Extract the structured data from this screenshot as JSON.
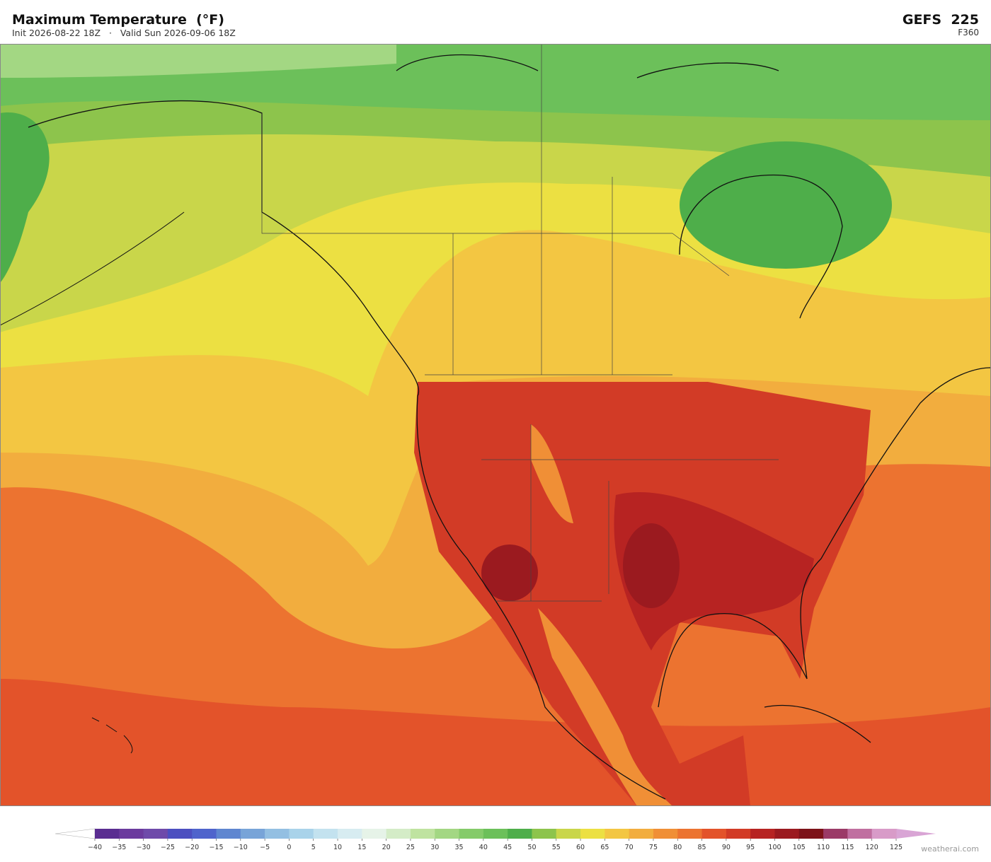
{
  "header": {
    "title": "Maximum Temperature  (°F)",
    "subtitle": "Init 2026-08-22 18Z   ·   Valid Sun 2026-09-06 18Z",
    "model": "GEFS  225",
    "forecast_hour": "F360"
  },
  "colorbar": {
    "ticks": [
      {
        "value": -40,
        "label": "−40"
      },
      {
        "value": -35,
        "label": "−35"
      },
      {
        "value": -30,
        "label": "−30"
      },
      {
        "value": -25,
        "label": "−25"
      },
      {
        "value": -20,
        "label": "−20"
      },
      {
        "value": -15,
        "label": "−15"
      },
      {
        "value": -10,
        "label": "−10"
      },
      {
        "value": -5,
        "label": "−5"
      },
      0,
      5,
      10,
      15,
      20,
      25,
      30,
      35,
      40,
      45,
      50,
      55,
      60,
      65,
      70,
      75,
      80,
      85,
      90,
      95,
      100,
      105,
      110,
      115,
      120,
      125
    ],
    "colors": [
      "#5a2d91",
      "#6b3a9e",
      "#6e4aaa",
      "#4c4fc0",
      "#4f64cc",
      "#5f86d0",
      "#78a4d8",
      "#93bfe2",
      "#a9d3ea",
      "#c3e2ef",
      "#d7ecf1",
      "#e6f3e8",
      "#d4ecc7",
      "#bfe3a0",
      "#a3d783",
      "#85cb6a",
      "#6cc05a",
      "#4eae4a",
      "#8dc44c",
      "#c9d64a",
      "#ece042",
      "#f3c642",
      "#f2ad3e",
      "#f08f36",
      "#ec7330",
      "#e3532a",
      "#d23b26",
      "#b72322",
      "#9b1a1f",
      "#7d1219",
      "#9b3a67",
      "#c06fa0",
      "#d89bc8"
    ],
    "under_color": "#ffffff",
    "over_color": "#d9a5d5"
  },
  "watermark": "weatherai.com"
}
